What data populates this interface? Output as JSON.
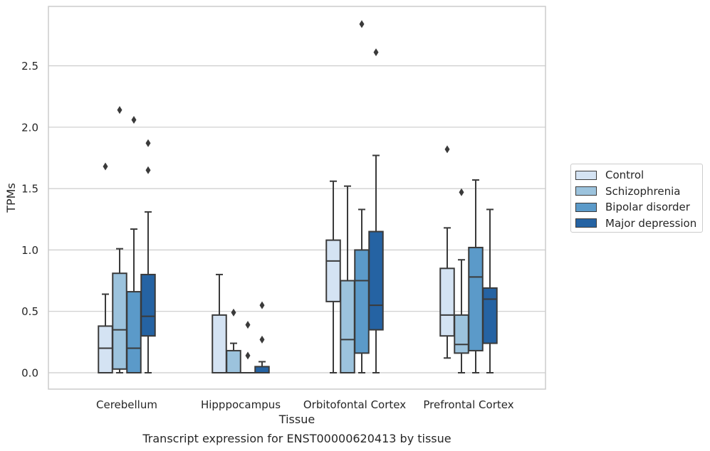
{
  "chart_data": {
    "type": "box",
    "title": "Transcript expression for ENST00000620413 by tissue",
    "xlabel": "Tissue",
    "ylabel": "TPMs",
    "ylim": [
      -0.14,
      2.99
    ],
    "yticks": [
      "0.0",
      "0.5",
      "1.0",
      "1.5",
      "2.0",
      "2.5"
    ],
    "grid": "horizontal",
    "legend_position": "right",
    "categories": [
      "Cerebellum",
      "Hipppocampus",
      "Orbitofontal Cortex",
      "Prefrontal Cortex"
    ],
    "series": [
      {
        "name": "Control",
        "color": "#d4e3f3",
        "boxes": [
          {
            "whisker_low": 0.0,
            "q1": 0.0,
            "median": 0.2,
            "q3": 0.38,
            "whisker_high": 0.64,
            "outliers": [
              1.68
            ]
          },
          {
            "whisker_low": 0.0,
            "q1": 0.0,
            "median": 0.0,
            "q3": 0.47,
            "whisker_high": 0.8,
            "outliers": []
          },
          {
            "whisker_low": 0.0,
            "q1": 0.58,
            "median": 0.91,
            "q3": 1.08,
            "whisker_high": 1.56,
            "outliers": []
          },
          {
            "whisker_low": 0.12,
            "q1": 0.3,
            "median": 0.47,
            "q3": 0.85,
            "whisker_high": 1.18,
            "outliers": [
              1.82
            ]
          }
        ]
      },
      {
        "name": "Schizophrenia",
        "color": "#9cc3dd",
        "boxes": [
          {
            "whisker_low": 0.0,
            "q1": 0.03,
            "median": 0.35,
            "q3": 0.81,
            "whisker_high": 1.01,
            "outliers": [
              2.14
            ]
          },
          {
            "whisker_low": 0.0,
            "q1": 0.0,
            "median": 0.0,
            "q3": 0.18,
            "whisker_high": 0.24,
            "outliers": [
              0.49
            ]
          },
          {
            "whisker_low": 0.0,
            "q1": 0.0,
            "median": 0.27,
            "q3": 0.75,
            "whisker_high": 1.52,
            "outliers": []
          },
          {
            "whisker_low": 0.0,
            "q1": 0.16,
            "median": 0.23,
            "q3": 0.47,
            "whisker_high": 0.92,
            "outliers": [
              1.47
            ]
          }
        ]
      },
      {
        "name": "Bipolar disorder",
        "color": "#5b9ac9",
        "boxes": [
          {
            "whisker_low": 0.0,
            "q1": 0.0,
            "median": 0.2,
            "q3": 0.66,
            "whisker_high": 1.17,
            "outliers": [
              2.06
            ]
          },
          {
            "whisker_low": 0.0,
            "q1": 0.0,
            "median": 0.0,
            "q3": 0.0,
            "whisker_high": 0.0,
            "outliers": [
              0.14,
              0.39
            ]
          },
          {
            "whisker_low": 0.0,
            "q1": 0.16,
            "median": 0.75,
            "q3": 1.0,
            "whisker_high": 1.33,
            "outliers": [
              2.84
            ]
          },
          {
            "whisker_low": 0.0,
            "q1": 0.18,
            "median": 0.78,
            "q3": 1.02,
            "whisker_high": 1.57,
            "outliers": []
          }
        ]
      },
      {
        "name": "Major depression",
        "color": "#2563a3",
        "boxes": [
          {
            "whisker_low": 0.0,
            "q1": 0.3,
            "median": 0.46,
            "q3": 0.8,
            "whisker_high": 1.31,
            "outliers": [
              1.65,
              1.87
            ]
          },
          {
            "whisker_low": 0.0,
            "q1": 0.0,
            "median": 0.0,
            "q3": 0.05,
            "whisker_high": 0.09,
            "outliers": [
              0.27,
              0.55
            ]
          },
          {
            "whisker_low": 0.0,
            "q1": 0.35,
            "median": 0.55,
            "q3": 1.15,
            "whisker_high": 1.77,
            "outliers": [
              2.61
            ]
          },
          {
            "whisker_low": 0.0,
            "q1": 0.24,
            "median": 0.6,
            "q3": 0.69,
            "whisker_high": 1.33,
            "outliers": []
          }
        ]
      }
    ]
  }
}
